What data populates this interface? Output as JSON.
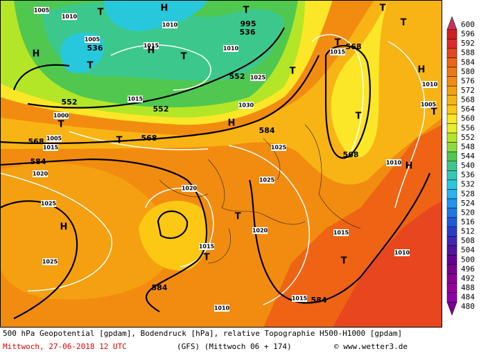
{
  "map": {
    "labels": [
      "1005",
      "1010",
      "T",
      "H",
      "T",
      "995",
      "536",
      "1010",
      "1005",
      "536",
      "1015",
      "H",
      "T",
      "1010",
      "T",
      "H",
      "552",
      "1025",
      "T",
      "1015",
      "552",
      "552",
      "1030",
      "1000",
      "T",
      "568",
      "1005",
      "1015",
      "T",
      "568",
      "H",
      "584",
      "1025",
      "584",
      "1020",
      "1025",
      "1020",
      "1025",
      "H",
      "T",
      "1020",
      "1015",
      "T",
      "1025",
      "584",
      "1010",
      "1015",
      "584",
      "1015",
      "T",
      "1010",
      "1010",
      "H",
      "568",
      "T",
      "1015",
      "T",
      "568",
      "T",
      "T",
      "H",
      "1010",
      "1005",
      "T"
    ]
  },
  "colorbar": {
    "levels": [
      600,
      596,
      592,
      588,
      584,
      580,
      576,
      572,
      568,
      564,
      560,
      556,
      552,
      548,
      544,
      540,
      536,
      532,
      528,
      524,
      520,
      516,
      512,
      508,
      504,
      500,
      496,
      492,
      488,
      484,
      480
    ],
    "colors": [
      "#c8325a",
      "#d21e1e",
      "#e02828",
      "#e8461e",
      "#ee6414",
      "#f07814",
      "#f28c10",
      "#f4a010",
      "#f8b414",
      "#fcc814",
      "#fce628",
      "#e6f028",
      "#b4e628",
      "#8cdc3c",
      "#50c850",
      "#3cc88c",
      "#32c8b4",
      "#28c8dc",
      "#28b4f0",
      "#1e96f0",
      "#1e78e6",
      "#1e5adc",
      "#283cc8",
      "#3c28b4",
      "#5014a0",
      "#640096",
      "#78008c",
      "#8c0096",
      "#9600a0",
      "#8c00aa",
      "#780096"
    ]
  },
  "footer": {
    "line1": "500 hPa Geopotential [gpdam], Bodendruck [hPa], relative Topographie H500-H1000 [gpdam]",
    "date": "Mittwoch, 27-06-2018  12 UTC",
    "run": "(GFS)  (Mittwoch 06 + 174)",
    "credit": "© www.wetter3.de"
  }
}
